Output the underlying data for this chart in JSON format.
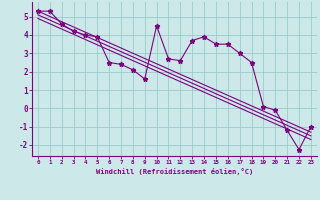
{
  "xlabel": "Windchill (Refroidissement éolien,°C)",
  "x": [
    0,
    1,
    2,
    3,
    4,
    5,
    6,
    7,
    8,
    9,
    10,
    11,
    12,
    13,
    14,
    15,
    16,
    17,
    18,
    19,
    20,
    21,
    22,
    23
  ],
  "y_data": [
    5.3,
    5.3,
    4.6,
    4.2,
    4.0,
    3.9,
    2.5,
    2.4,
    2.1,
    1.6,
    4.5,
    2.7,
    2.6,
    3.7,
    3.9,
    3.5,
    3.5,
    3.0,
    2.5,
    0.1,
    -0.1,
    -1.2,
    -2.25,
    -1.0
  ],
  "trend_x": [
    0,
    23
  ],
  "trend1_y": [
    5.3,
    -1.3
  ],
  "trend2_y": [
    5.1,
    -1.5
  ],
  "trend3_y": [
    4.9,
    -1.7
  ],
  "ylim": [
    -2.6,
    5.8
  ],
  "xlim": [
    -0.5,
    23.5
  ],
  "bg_color": "#cce8e8",
  "line_color": "#800080",
  "grid_color": "#99cccc",
  "tick_label_color": "#800080",
  "xlabel_color": "#800080",
  "yticks": [
    -2,
    -1,
    0,
    1,
    2,
    3,
    4,
    5
  ]
}
